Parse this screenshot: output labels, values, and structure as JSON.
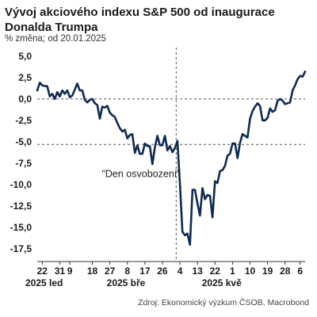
{
  "chart_data": {
    "type": "line",
    "title": "Vývoj akciového indexu S&P 500 od inaugurace Donalda Trumpa",
    "subtitle": "% změna; od 20.01.2025",
    "source": "Zdroj: Ekonomický výzkum ČSOB, Macrobond",
    "ylim": [
      -18.5,
      6
    ],
    "yticks": [
      5.0,
      2.5,
      0.0,
      -2.5,
      -5.0,
      -7.5,
      -10.0,
      -12.5,
      -15.0,
      -17.5
    ],
    "ytick_labels": [
      "5,0",
      "2,5",
      "0,0",
      "-2,5",
      "-5,0",
      "-7,5",
      "-10,0",
      "-12,5",
      "-15,0",
      "-17,5"
    ],
    "xlim": [
      0,
      107
    ],
    "xticks": [
      {
        "x": 2,
        "label": "22"
      },
      {
        "x": 9,
        "label": "31"
      },
      {
        "x": 13,
        "label": "9"
      },
      {
        "x": 22,
        "label": "18"
      },
      {
        "x": 29,
        "label": "27"
      },
      {
        "x": 36,
        "label": "8"
      },
      {
        "x": 43,
        "label": "17"
      },
      {
        "x": 50,
        "label": "26"
      },
      {
        "x": 57,
        "label": "4"
      },
      {
        "x": 64,
        "label": "13"
      },
      {
        "x": 71,
        "label": "22"
      },
      {
        "x": 78,
        "label": "1"
      },
      {
        "x": 85,
        "label": "10"
      },
      {
        "x": 92,
        "label": "19"
      },
      {
        "x": 99,
        "label": "28"
      },
      {
        "x": 105,
        "label": "6"
      }
    ],
    "x_groups": [
      {
        "x": 0,
        "label": "2025 led"
      },
      {
        "x": 32.5,
        "label": "2025 bře"
      },
      {
        "x": 70.5,
        "label": "2025 kvě"
      }
    ],
    "reference_lines": [
      {
        "axis": "y",
        "value": 0,
        "style": "dashed"
      },
      {
        "axis": "y",
        "value": -5.3,
        "style": "dashed"
      },
      {
        "axis": "x",
        "value": 55.5,
        "style": "dashed"
      }
    ],
    "annotations": [
      {
        "text": "\"Den osvobození\"",
        "x": 41.5,
        "y": -9.1
      }
    ],
    "series": [
      {
        "color": "#0f2a52",
        "x": [
          0,
          1,
          2,
          3,
          4,
          5,
          6,
          7,
          8,
          9,
          10,
          11,
          12,
          13,
          14,
          15,
          16,
          17,
          18,
          19,
          20,
          21,
          22,
          23,
          24,
          25,
          26,
          27,
          28,
          29,
          30,
          31,
          32,
          33,
          34,
          35,
          36,
          37,
          38,
          39,
          40,
          41,
          42,
          43,
          44,
          45,
          46,
          47,
          48,
          49,
          50,
          51,
          52,
          53,
          54,
          55,
          56,
          57,
          58,
          59,
          60,
          61,
          62,
          63,
          64,
          65,
          66,
          67,
          68,
          69,
          70,
          71,
          72,
          73,
          74,
          75,
          76,
          77,
          78,
          79,
          80,
          81,
          82,
          83,
          84,
          85,
          86,
          87,
          88,
          89,
          90,
          91,
          92,
          93,
          94,
          95,
          96,
          97,
          98,
          99,
          100,
          101,
          102,
          103,
          104,
          105,
          106,
          107
        ],
        "y": [
          1.0,
          1.9,
          1.6,
          1.5,
          1.5,
          0.3,
          0.6,
          0.0,
          0.8,
          0.3,
          1.0,
          0.6,
          1.0,
          0.2,
          0.4,
          1.1,
          1.8,
          1.0,
          1.0,
          -0.1,
          -0.4,
          -0.1,
          0.0,
          -0.5,
          -0.7,
          -2.3,
          -0.9,
          -1.0,
          -0.8,
          -1.6,
          -1.9,
          -2.1,
          -2.8,
          -3.4,
          -3.8,
          -3.6,
          -4.6,
          -4.2,
          -4.1,
          -6.3,
          -5.4,
          -6.4,
          -6.4,
          -5.2,
          -5.5,
          -5.5,
          -7.6,
          -5.6,
          -4.3,
          -5.4,
          -5.4,
          -4.3,
          -6.0,
          -5.5,
          -6.2,
          -5.7,
          -4.9,
          -10.0,
          -15.5,
          -15.9,
          -15.7,
          -17.0,
          -10.6,
          -10.6,
          -12.2,
          -13.6,
          -10.4,
          -11.7,
          -11.2,
          -11.3,
          -13.8,
          -9.6,
          -9.8,
          -8.4,
          -8.3,
          -7.8,
          -6.6,
          -6.4,
          -5.2,
          -5.2,
          -6.9,
          -5.1,
          -4.1,
          -4.3,
          -4.5,
          -2.3,
          -1.4,
          -0.9,
          -0.5,
          -0.8,
          -2.5,
          -2.5,
          -2.2,
          -1.1,
          -1.5,
          -1.3,
          -0.2,
          0.0,
          -0.2,
          -0.6,
          -0.5,
          -0.4,
          1.0,
          1.6,
          2.3,
          2.7,
          2.6,
          3.2
        ]
      }
    ]
  }
}
